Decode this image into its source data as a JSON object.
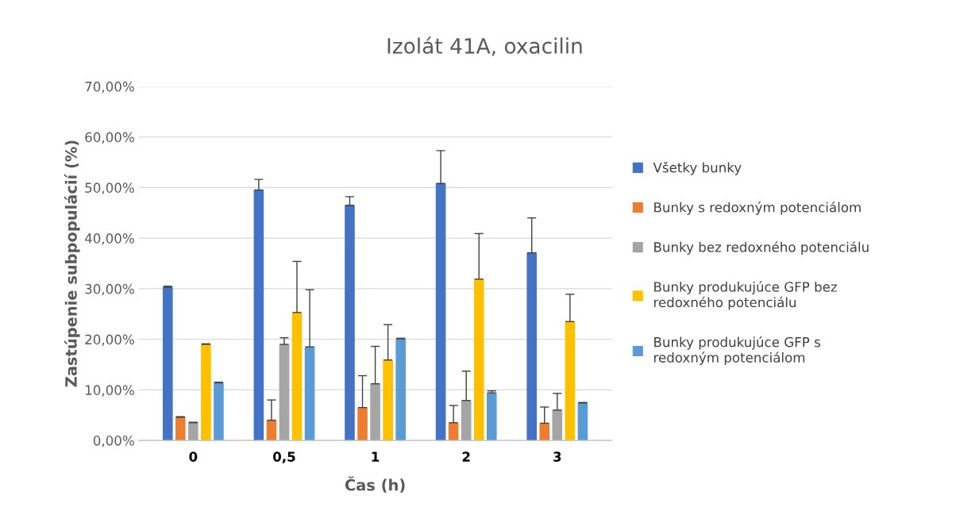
{
  "chart_data": {
    "type": "bar",
    "title": "Izolát 41A, oxacilin",
    "xlabel": "Čas (h)",
    "ylabel": "Zastúpenie subpopulácií (%)",
    "categories": [
      "0",
      "0,5",
      "1",
      "2",
      "3"
    ],
    "series": [
      {
        "name": "Všetky bunky",
        "color": "#4472c4",
        "values": [
          30.3,
          49.5,
          46.5,
          50.8,
          37.1
        ],
        "errors": [
          [
            30.3,
            30.5
          ],
          [
            49.5,
            51.6
          ],
          [
            46.5,
            48.2
          ],
          [
            50.8,
            57.3
          ],
          [
            37.1,
            44.0
          ]
        ]
      },
      {
        "name": "Bunky s redoxným potenciálom",
        "color": "#ed7d31",
        "values": [
          4.6,
          4.0,
          6.5,
          3.5,
          3.4
        ],
        "errors": [
          [
            4.6,
            4.7
          ],
          [
            4.0,
            8.0
          ],
          [
            6.5,
            12.8
          ],
          [
            3.5,
            6.9
          ],
          [
            3.4,
            6.6
          ]
        ]
      },
      {
        "name": "Bunky bez redoxného potenciálu",
        "color": "#a5a5a5",
        "values": [
          3.5,
          19.0,
          11.2,
          7.9,
          6.0
        ],
        "errors": [
          [
            3.5,
            3.6
          ],
          [
            19.0,
            20.3
          ],
          [
            11.2,
            18.6
          ],
          [
            7.9,
            13.7
          ],
          [
            6.0,
            9.3
          ]
        ]
      },
      {
        "name": "Bunky produkujúce GFP bez redoxného potenciálu",
        "color": "#ffc000",
        "values": [
          19.0,
          25.3,
          15.9,
          31.9,
          23.5
        ],
        "errors": [
          [
            19.0,
            19.1
          ],
          [
            25.3,
            35.4
          ],
          [
            15.9,
            22.9
          ],
          [
            31.9,
            40.9
          ],
          [
            23.5,
            28.9
          ]
        ]
      },
      {
        "name": "Bunky produkujúce GFP s redoxným potenciálom",
        "color": "#5b9bd5",
        "values": [
          11.4,
          18.5,
          20.1,
          9.4,
          7.4
        ],
        "errors": [
          [
            11.4,
            11.5
          ],
          [
            18.5,
            29.8
          ],
          [
            20.1,
            20.2
          ],
          [
            9.4,
            9.8
          ],
          [
            7.4,
            7.5
          ]
        ]
      }
    ],
    "ylim": [
      0,
      70
    ],
    "yticks": [
      {
        "value": 0,
        "label": "0,00%"
      },
      {
        "value": 10,
        "label": "10,00%"
      },
      {
        "value": 20,
        "label": "20,00%"
      },
      {
        "value": 30,
        "label": "30,00%"
      },
      {
        "value": 40,
        "label": "40,00%"
      },
      {
        "value": 50,
        "label": "50,00%"
      },
      {
        "value": 60,
        "label": "60,00%"
      },
      {
        "value": 70,
        "label": "70,00%"
      }
    ],
    "grid": "y",
    "legend": "right"
  }
}
